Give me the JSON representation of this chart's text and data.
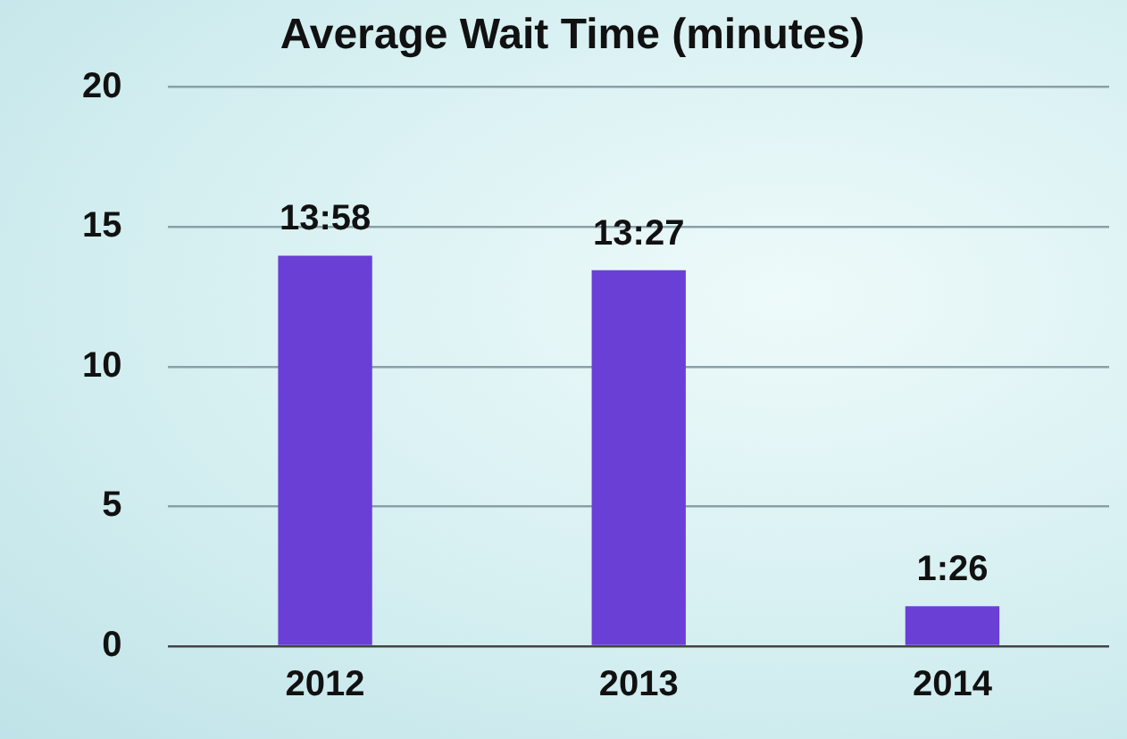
{
  "chart_data": {
    "type": "bar",
    "title": "Average Wait Time (minutes)",
    "categories": [
      "2012",
      "2013",
      "2014"
    ],
    "values": [
      13.97,
      13.45,
      1.43
    ],
    "value_labels": [
      "13:58",
      "13:27",
      "1:26"
    ],
    "color": "#6a3fd6",
    "ylim": [
      0,
      20
    ],
    "yticks": [
      0,
      5,
      10,
      15,
      20
    ],
    "grid": "y",
    "legend": false
  }
}
